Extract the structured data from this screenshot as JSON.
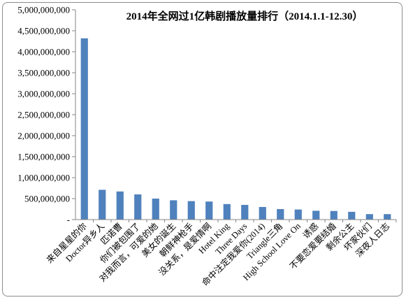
{
  "chart_data": {
    "type": "bar",
    "title": "2014年全网过1亿韩剧播放量排行（2014.1.1-12.30）",
    "xlabel": "",
    "ylabel": "",
    "ylim": [
      0,
      5000000000
    ],
    "ytick_labels": [
      "-",
      "500,000,000",
      "1,000,000,000",
      "1,500,000,000",
      "2,000,000,000",
      "2,500,000,000",
      "3,000,000,000",
      "3,500,000,000",
      "4,000,000,000",
      "4,500,000,000",
      "5,000,000,000"
    ],
    "categories": [
      "来自星星的你",
      "Doctor异乡人",
      "匹诺曹",
      "你们被包围了",
      "对我而言，可爱的她",
      "美女的诞生",
      "朝鲜神枪手",
      "没关系，是爱情啊",
      "Hotel King",
      "Three Days",
      "命中注定我爱你(2014)",
      "Triangle三角",
      "High School Love On",
      "诱惑",
      "不要恋爱要结婚",
      "剩余公主",
      "坏家伙们",
      "深夜人日志"
    ],
    "values": [
      4320000000,
      710000000,
      670000000,
      600000000,
      500000000,
      460000000,
      440000000,
      430000000,
      370000000,
      350000000,
      300000000,
      250000000,
      240000000,
      210000000,
      205000000,
      185000000,
      130000000,
      130000000
    ],
    "grid": false,
    "legend": "none",
    "bar_color": "#4f81bd"
  }
}
